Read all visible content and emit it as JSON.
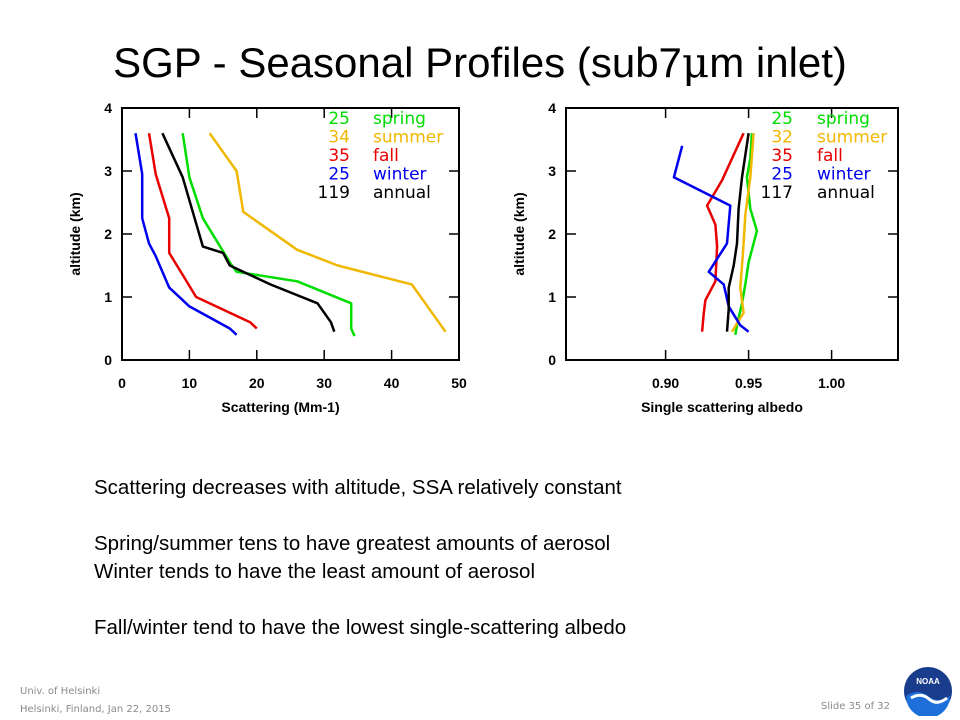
{
  "slide": {
    "title_prefix": "SGP - Seasonal Profiles (sub7",
    "title_mu": "μ",
    "title_suffix": "m inlet)",
    "bullets": [
      "Scattering decreases with altitude, SSA relatively constant",
      "",
      "Spring/summer tens to have greatest amounts of aerosol",
      "Winter tends to have the least amount of aerosol",
      "",
      "Fall/winter tend to have the lowest single-scattering albedo"
    ],
    "footer_line1": "Univ. of Helsinki",
    "footer_line2": "Helsinki, Finland, Jan 22, 2015",
    "slide_number": "Slide 35 of 32",
    "logo_text": "NOAA"
  },
  "chart_data": [
    {
      "type": "line",
      "xlabel": "Scattering (Mm-1)",
      "ylabel": "altitude (km)",
      "xlim": [
        0,
        50
      ],
      "ylim": [
        0,
        4
      ],
      "xticks": [
        0,
        10,
        20,
        30,
        40,
        50
      ],
      "yticks": [
        0,
        1,
        2,
        3,
        4
      ],
      "legend_position": "top-right",
      "series": [
        {
          "name": "spring",
          "count": "25",
          "color": "#00dd00",
          "x": [
            34.5,
            34,
            34,
            26,
            17,
            16,
            12,
            10,
            9
          ],
          "y": [
            0.38,
            0.5,
            0.9,
            1.25,
            1.4,
            1.55,
            2.25,
            2.9,
            3.6
          ]
        },
        {
          "name": "summer",
          "count": "34",
          "color": "#f0b800",
          "x": [
            48,
            43,
            32,
            26,
            18,
            17,
            13
          ],
          "y": [
            0.45,
            1.2,
            1.5,
            1.75,
            2.35,
            3.0,
            3.6
          ]
        },
        {
          "name": "fall",
          "count": "35",
          "color": "#e80000",
          "x": [
            20,
            19,
            11,
            9,
            7,
            7,
            5,
            4
          ],
          "y": [
            0.5,
            0.6,
            1.0,
            1.35,
            1.7,
            2.25,
            2.95,
            3.6
          ]
        },
        {
          "name": "winter",
          "count": "25",
          "color": "#0000ee",
          "x": [
            17,
            16,
            10,
            7,
            5,
            4,
            3,
            3,
            2
          ],
          "y": [
            0.4,
            0.5,
            0.85,
            1.15,
            1.65,
            1.85,
            2.25,
            2.95,
            3.6
          ]
        },
        {
          "name": "annual",
          "count": "119",
          "color": "#000000",
          "x": [
            31.5,
            31,
            29,
            22,
            16,
            15,
            12,
            9,
            6
          ],
          "y": [
            0.45,
            0.6,
            0.9,
            1.2,
            1.5,
            1.7,
            1.8,
            2.9,
            3.6
          ]
        }
      ]
    },
    {
      "type": "line",
      "xlabel": "Single scattering albedo",
      "ylabel": "altitude (km)",
      "xlim": [
        0.84,
        1.04
      ],
      "ylim": [
        0,
        4
      ],
      "xticks": [
        0.9,
        0.95,
        1.0
      ],
      "xtick_labels": [
        "0.90",
        "0.95",
        "1.00"
      ],
      "yticks": [
        0,
        1,
        2,
        3,
        4
      ],
      "legend_position": "top-right",
      "series": [
        {
          "name": "spring",
          "count": "25",
          "color": "#00dd00",
          "x": [
            0.942,
            0.943,
            0.946,
            0.948,
            0.95,
            0.955,
            0.951,
            0.949,
            0.951,
            0.952
          ],
          "y": [
            0.4,
            0.55,
            0.9,
            1.2,
            1.55,
            2.05,
            2.4,
            2.9,
            3.2,
            3.6
          ]
        },
        {
          "name": "summer",
          "count": "32",
          "color": "#f0b800",
          "x": [
            0.94,
            0.947,
            0.945,
            0.946,
            0.947,
            0.948,
            0.951,
            0.953
          ],
          "y": [
            0.45,
            0.75,
            1.15,
            1.5,
            1.85,
            2.3,
            2.9,
            3.6
          ]
        },
        {
          "name": "fall",
          "count": "35",
          "color": "#e80000",
          "x": [
            0.922,
            0.923,
            0.924,
            0.93,
            0.931,
            0.93,
            0.925,
            0.934,
            0.947
          ],
          "y": [
            0.45,
            0.75,
            0.95,
            1.25,
            1.8,
            2.15,
            2.45,
            2.85,
            3.6
          ]
        },
        {
          "name": "winter",
          "count": "25",
          "color": "#0000ee",
          "x": [
            0.95,
            0.945,
            0.938,
            0.935,
            0.926,
            0.937,
            0.939,
            0.905,
            0.91
          ],
          "y": [
            0.45,
            0.55,
            0.85,
            1.2,
            1.4,
            1.85,
            2.45,
            2.9,
            3.4
          ]
        },
        {
          "name": "annual",
          "count": "117",
          "color": "#000000",
          "x": [
            0.937,
            0.938,
            0.938,
            0.941,
            0.943,
            0.944,
            0.946,
            0.95
          ],
          "y": [
            0.45,
            0.8,
            1.15,
            1.5,
            1.85,
            2.4,
            2.9,
            3.6
          ]
        }
      ]
    }
  ]
}
